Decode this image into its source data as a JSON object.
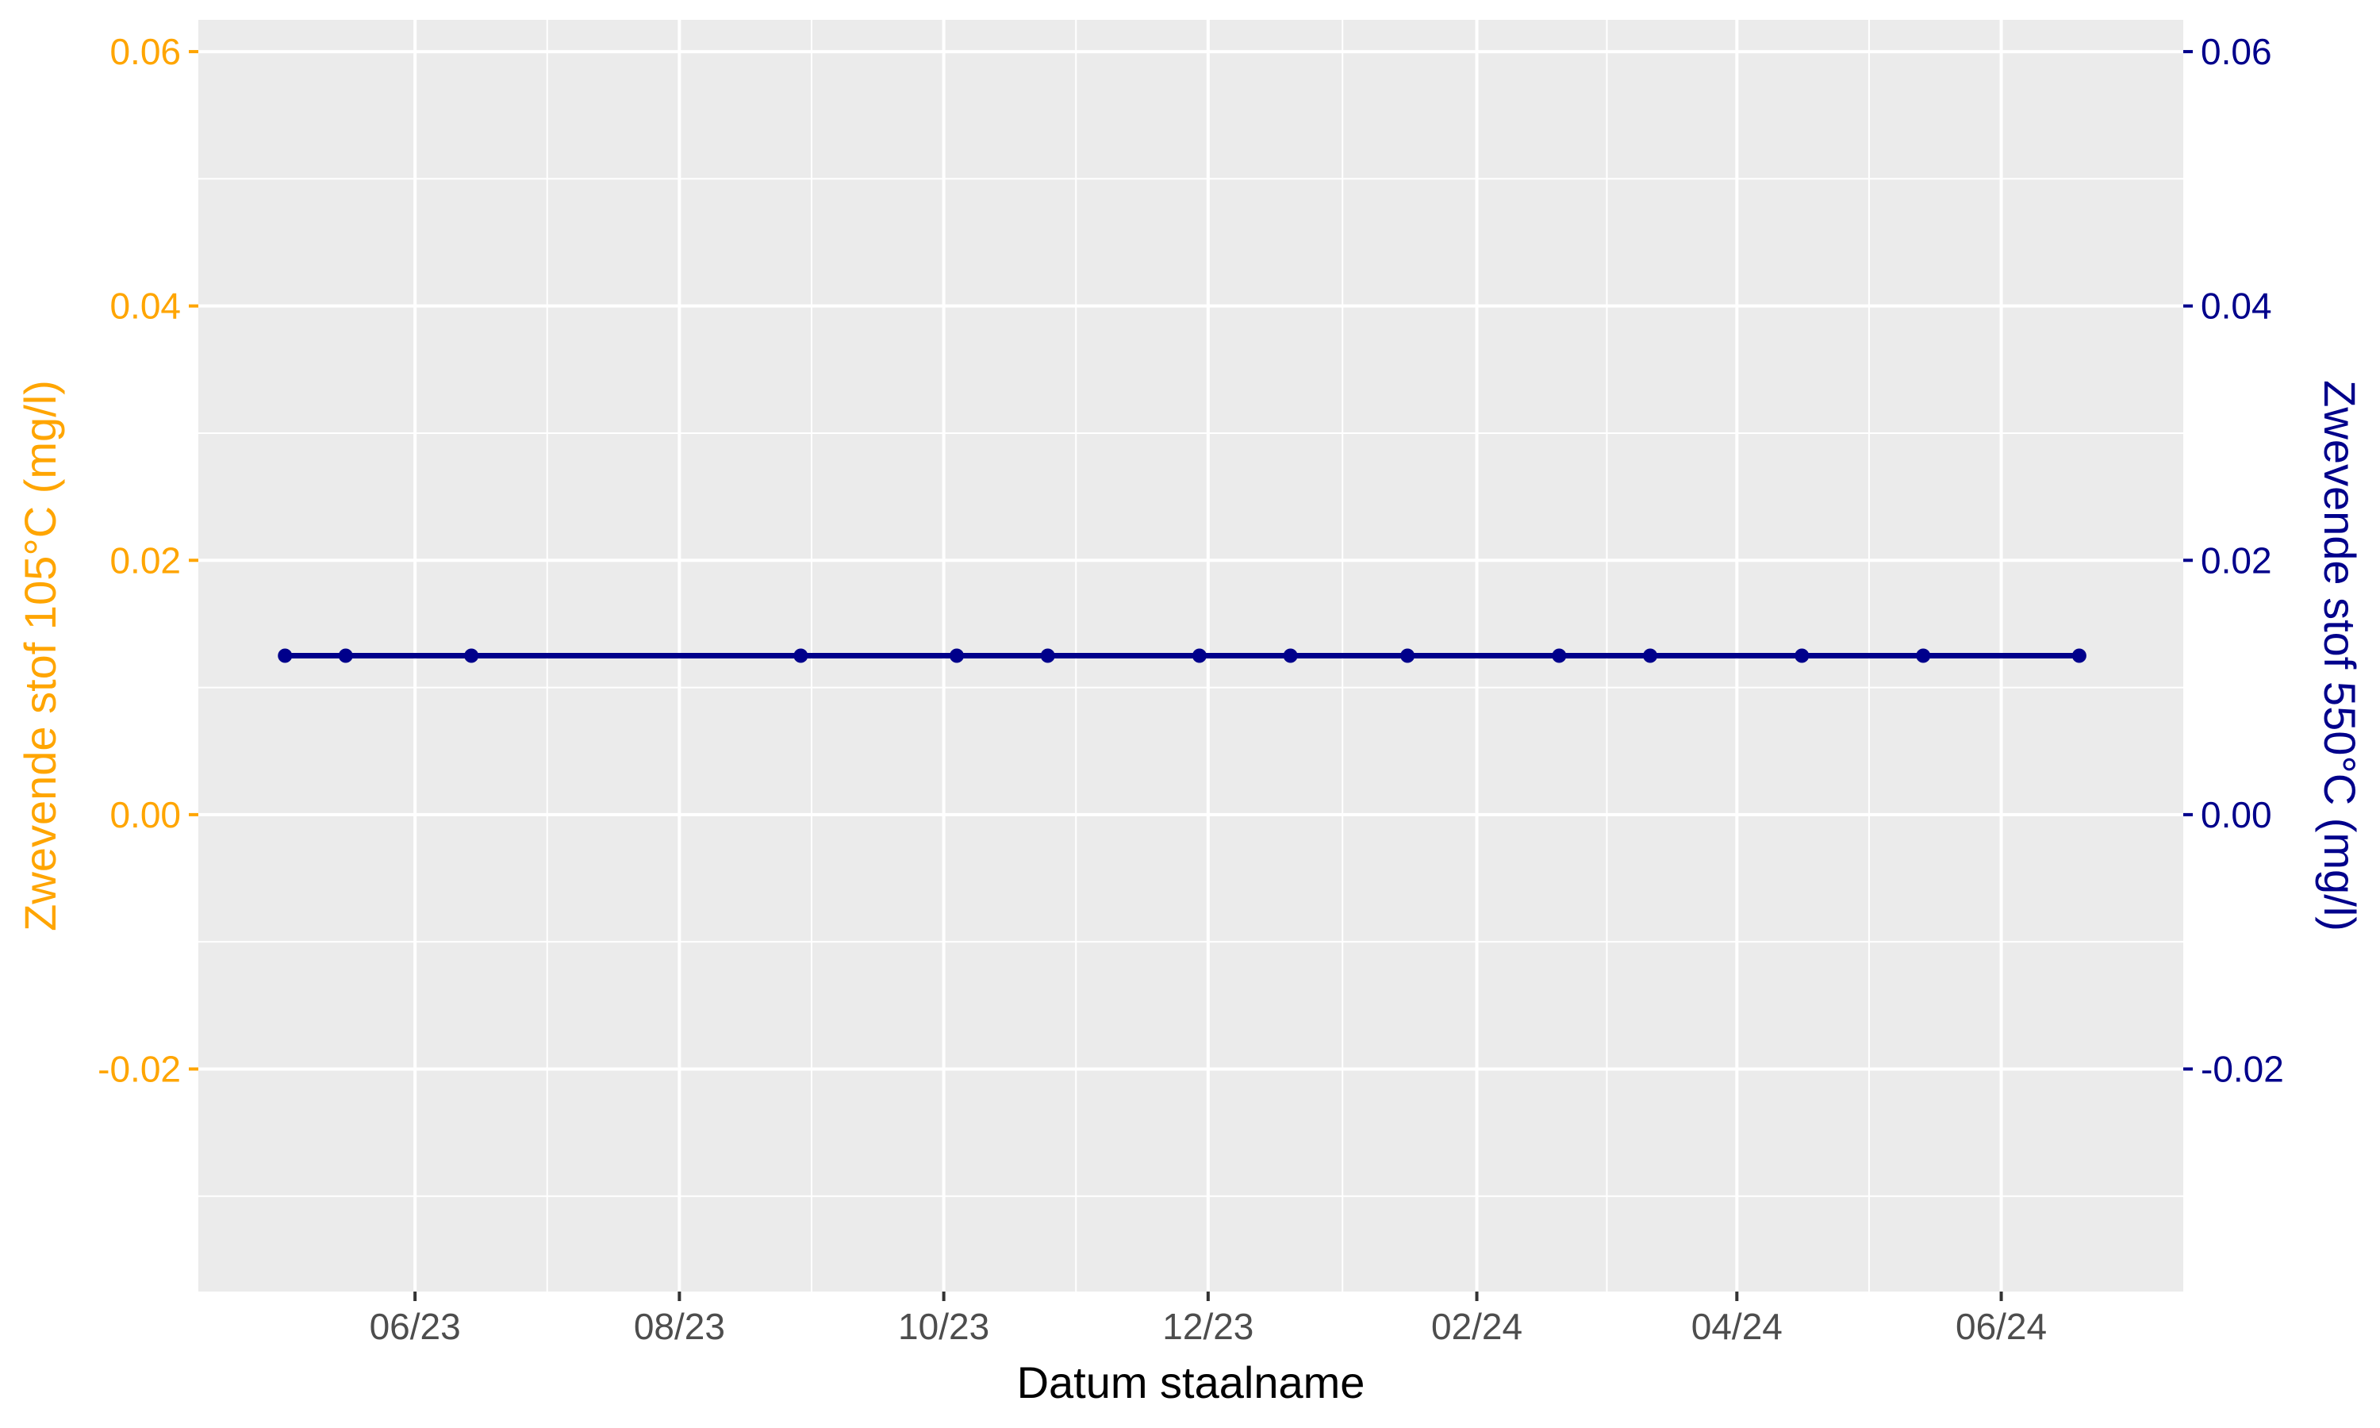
{
  "chart_data": {
    "type": "line",
    "xlabel": "Datum staalname",
    "ylabel_left": "Zwevende stof 105°C (mg/l)",
    "ylabel_right": "Zwevende stof 550°C (mg/l)",
    "x_tick_labels": [
      "06/23",
      "08/23",
      "10/23",
      "12/23",
      "02/24",
      "04/24",
      "06/24"
    ],
    "x_tick_dates": [
      "2023-06-01",
      "2023-08-01",
      "2023-10-01",
      "2023-12-01",
      "2024-02-01",
      "2024-04-01",
      "2024-06-01"
    ],
    "y_tick_labels": [
      "0.06",
      "0.04",
      "0.02",
      "0.00",
      "-0.02"
    ],
    "y_tick_values": [
      0.06,
      0.04,
      0.02,
      0.0,
      -0.02
    ],
    "ylim": [
      -0.0375,
      0.0625
    ],
    "xlim": [
      "2023-04-12",
      "2024-07-13"
    ],
    "grid": true,
    "colors": {
      "left_axis": "#FFA500",
      "right_axis": "#00008B",
      "series": "#00008B",
      "panel": "#EBEBEB",
      "grid": "#FFFFFF"
    },
    "series": [
      {
        "x": [
          "2023-05-02",
          "2023-05-16",
          "2023-06-14",
          "2023-08-29",
          "2023-10-04",
          "2023-10-25",
          "2023-11-29",
          "2023-12-20",
          "2024-01-16",
          "2024-02-20",
          "2024-03-12",
          "2024-04-16",
          "2024-05-14",
          "2024-06-19"
        ],
        "y": [
          0.0125,
          0.0125,
          0.0125,
          0.0125,
          0.0125,
          0.0125,
          0.0125,
          0.0125,
          0.0125,
          0.0125,
          0.0125,
          0.0125,
          0.0125,
          0.0125
        ]
      }
    ]
  }
}
